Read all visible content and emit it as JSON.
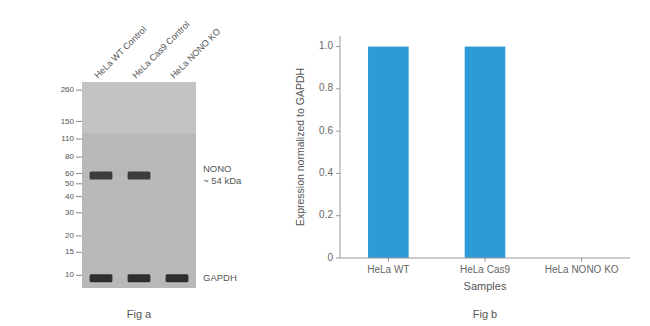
{
  "chart_data": [
    {
      "type": "blot",
      "title": "Fig a",
      "categories": [
        "HeLa WT Control",
        "HeLa Cas9 Control",
        "HeLa NONO KO"
      ],
      "series": [
        {
          "name": "NONO\n~ 54 kDa",
          "color": "#2a2a2a",
          "values": [
            58,
            58,
            null
          ]
        },
        {
          "name": "GAPDH",
          "color": "#1a1a1a",
          "values": [
            9.5,
            9.5,
            9.5
          ]
        }
      ],
      "log": "y",
      "ylim": [
        8,
        300
      ],
      "yticks": [
        260,
        150,
        110,
        80,
        60,
        50,
        40,
        30,
        20,
        15,
        10
      ]
    },
    {
      "type": "bar",
      "title": "Fig b",
      "categories": [
        "HeLa WT",
        "HeLa Cas9",
        "HeLa NONO KO"
      ],
      "values": [
        1.0,
        1.0,
        0.0
      ],
      "color": "#2E9BD6",
      "xlabel": "Samples",
      "ylabel": "Expression normalized to GAPDH",
      "ylim": [
        0,
        1.05
      ],
      "yticks": [
        0,
        0.2,
        0.4,
        0.6,
        0.8,
        {
          "value": 1.0,
          "label": "1.0"
        }
      ]
    }
  ]
}
